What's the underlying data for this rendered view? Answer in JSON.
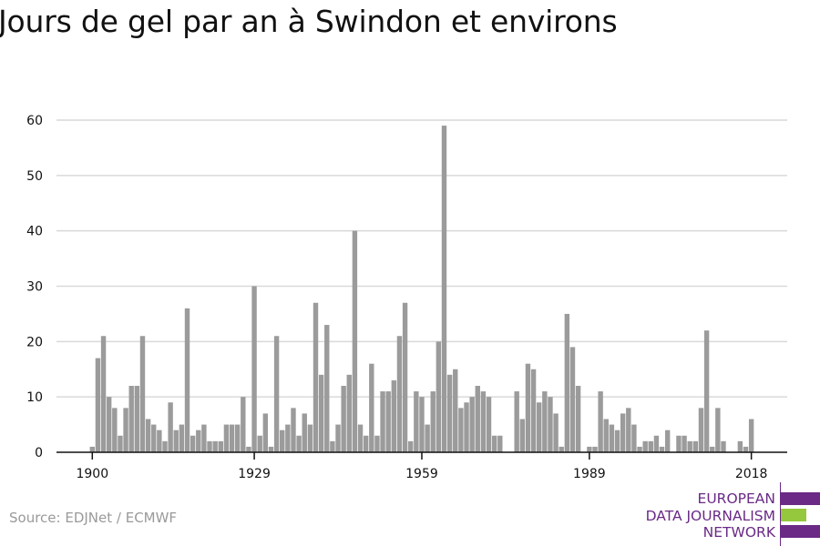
{
  "title": "Jours de gel par an à Swindon et environs",
  "source": "Source: EDJNet / ECMWF",
  "logo": {
    "line1": "EUROPEAN",
    "line2": "DATA JOURNALISM",
    "line3": "NETWORK",
    "purple": "#6a2a86",
    "green": "#95c83d"
  },
  "colors": {
    "bar": "#9b9b9b",
    "grid": "#d9d9d9",
    "axis": "#111111"
  },
  "chart_data": {
    "type": "bar",
    "title": "Jours de gel par an à Swindon et environs",
    "xlabel": "",
    "ylabel": "",
    "ylim": [
      0,
      60
    ],
    "y_ticks": [
      0,
      10,
      20,
      30,
      40,
      50,
      60
    ],
    "x_ticks": [
      "1900",
      "1929",
      "1959",
      "1989",
      "2018"
    ],
    "grid": true,
    "start_year": 1900,
    "values": [
      1,
      17,
      21,
      10,
      8,
      3,
      8,
      12,
      12,
      21,
      6,
      5,
      4,
      2,
      9,
      4,
      5,
      26,
      3,
      4,
      5,
      2,
      2,
      2,
      5,
      5,
      5,
      10,
      1,
      30,
      3,
      7,
      1,
      21,
      4,
      5,
      8,
      3,
      7,
      5,
      27,
      14,
      23,
      2,
      5,
      12,
      14,
      40,
      5,
      3,
      16,
      3,
      11,
      11,
      13,
      21,
      27,
      2,
      11,
      10,
      5,
      11,
      20,
      59,
      14,
      15,
      8,
      9,
      10,
      12,
      11,
      10,
      3,
      3,
      0,
      0,
      11,
      6,
      16,
      15,
      9,
      11,
      10,
      7,
      1,
      25,
      19,
      12,
      0,
      1,
      1,
      11,
      6,
      5,
      4,
      7,
      8,
      5,
      1,
      2,
      2,
      3,
      1,
      4,
      0,
      3,
      3,
      2,
      2,
      8,
      22,
      1,
      8,
      2,
      0,
      0,
      2,
      1,
      6
    ]
  }
}
